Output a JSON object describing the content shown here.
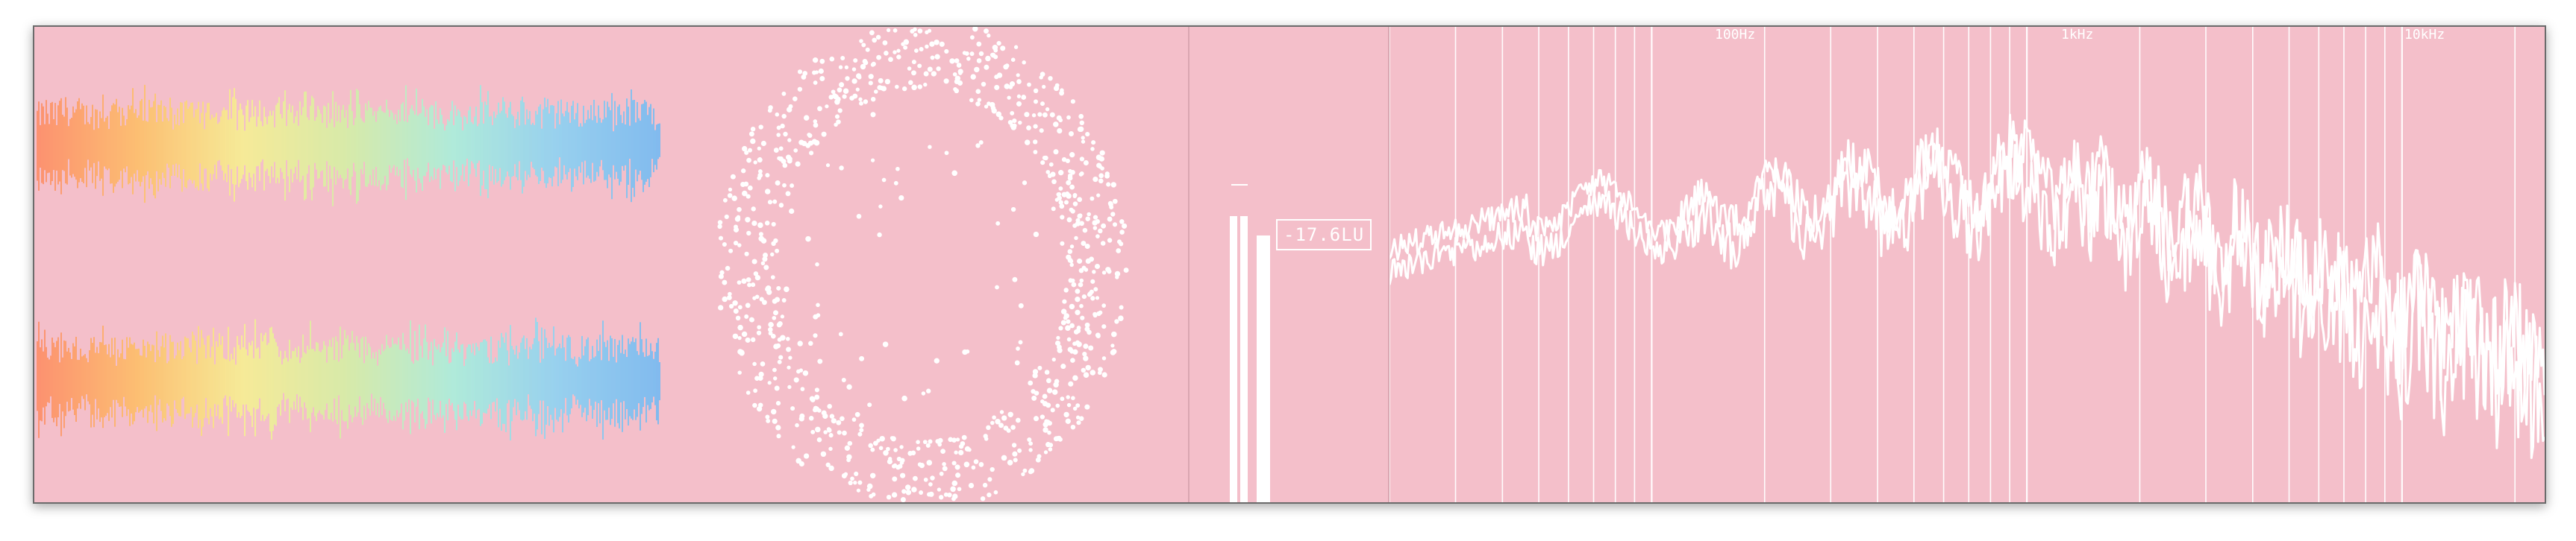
{
  "colors": {
    "background": "#f4bfca",
    "foreground": "#ffffff",
    "divider": "#d9a6b1",
    "border": "#6b6b6b",
    "waveform_gradient": [
      "#ff7a45",
      "#ffbe4a",
      "#f6ff80",
      "#c8ff9a",
      "#8fffe0",
      "#6bd8ff",
      "#4ab8ff"
    ]
  },
  "panels": {
    "waveform": {
      "icon": "waveform-icon",
      "channels": 2
    },
    "goniometer": {
      "icon": "scatter-icon"
    },
    "loudness": {
      "icon": "meter-icon",
      "readout": "-17.6LU"
    },
    "spectrum": {
      "icon": "spectrum-icon",
      "frequency_labels": [
        "100Hz",
        "1kHz",
        "10kHz"
      ],
      "scale": "log"
    }
  }
}
